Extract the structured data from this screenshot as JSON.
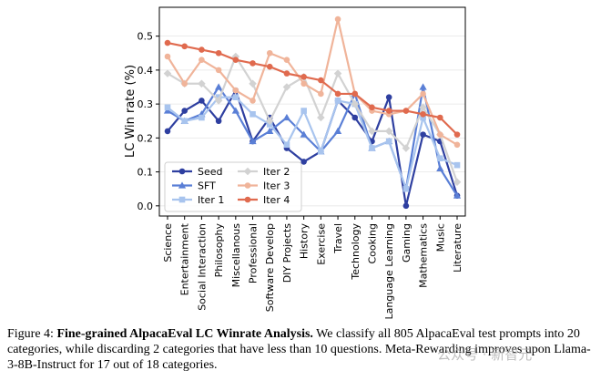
{
  "chart_data": {
    "type": "line",
    "ylabel": "LC Win rate (%)",
    "ylim": [
      -0.03,
      0.585
    ],
    "yticks": [
      "0.0",
      "0.1",
      "0.2",
      "0.3",
      "0.4",
      "0.5"
    ],
    "categories": [
      "Science",
      "Entertainment",
      "Social Interaction",
      "Philosophy",
      "Miscellanous",
      "Professional",
      "Software Develop",
      "DIY Projects",
      "History",
      "Exercise",
      "Travel",
      "Technology",
      "Cooking",
      "Language Learning",
      "Gaming",
      "Mathematics",
      "Music",
      "Literature"
    ],
    "legend_position": "lower-left",
    "series": [
      {
        "name": "Seed",
        "marker": "circle",
        "color": "#2e3fa0",
        "values": [
          0.22,
          0.28,
          0.31,
          0.25,
          0.34,
          0.19,
          0.26,
          0.17,
          0.13,
          0.16,
          0.31,
          0.26,
          0.19,
          0.32,
          0.0,
          0.21,
          0.19,
          0.03
        ]
      },
      {
        "name": "SFT",
        "marker": "triangle",
        "color": "#5a7fd6",
        "values": [
          0.28,
          0.25,
          0.27,
          0.35,
          0.28,
          0.19,
          0.22,
          0.26,
          0.21,
          0.16,
          0.22,
          0.33,
          0.17,
          0.19,
          0.05,
          0.35,
          0.11,
          0.03
        ]
      },
      {
        "name": "Iter 1",
        "marker": "square",
        "color": "#a8c4ee",
        "values": [
          0.29,
          0.25,
          0.26,
          0.32,
          0.32,
          0.27,
          0.24,
          0.18,
          0.28,
          0.16,
          0.31,
          0.3,
          0.17,
          0.19,
          0.05,
          0.26,
          0.14,
          0.12
        ]
      },
      {
        "name": "Iter 2",
        "marker": "diamond",
        "color": "#d2d2d2",
        "values": [
          0.39,
          0.36,
          0.36,
          0.31,
          0.44,
          0.36,
          0.25,
          0.35,
          0.38,
          0.26,
          0.39,
          0.3,
          0.22,
          0.22,
          0.17,
          0.29,
          0.21,
          0.07
        ]
      },
      {
        "name": "Iter 3",
        "marker": "circle",
        "color": "#f0b49a",
        "values": [
          0.44,
          0.36,
          0.43,
          0.4,
          0.34,
          0.31,
          0.45,
          0.43,
          0.36,
          0.33,
          0.55,
          0.33,
          0.28,
          0.27,
          0.28,
          0.33,
          0.21,
          0.18
        ]
      },
      {
        "name": "Iter 4",
        "marker": "circle",
        "color": "#e06a4e",
        "values": [
          0.48,
          0.47,
          0.46,
          0.45,
          0.43,
          0.42,
          0.41,
          0.39,
          0.38,
          0.37,
          0.33,
          0.33,
          0.29,
          0.28,
          0.28,
          0.27,
          0.26,
          0.21
        ]
      }
    ]
  },
  "caption": {
    "label": "Figure 4:",
    "bold": "Fine-grained AlpacaEval LC Winrate Analysis.",
    "text": "We classify all 805 AlpacaEval test prompts into 20 categories, while discarding 2 categories that have less than 10 questions. Meta-Rewarding improves upon Llama-3-8B-Instruct for 17 out of 18 categories."
  },
  "watermark": "公众号 · 新智元"
}
